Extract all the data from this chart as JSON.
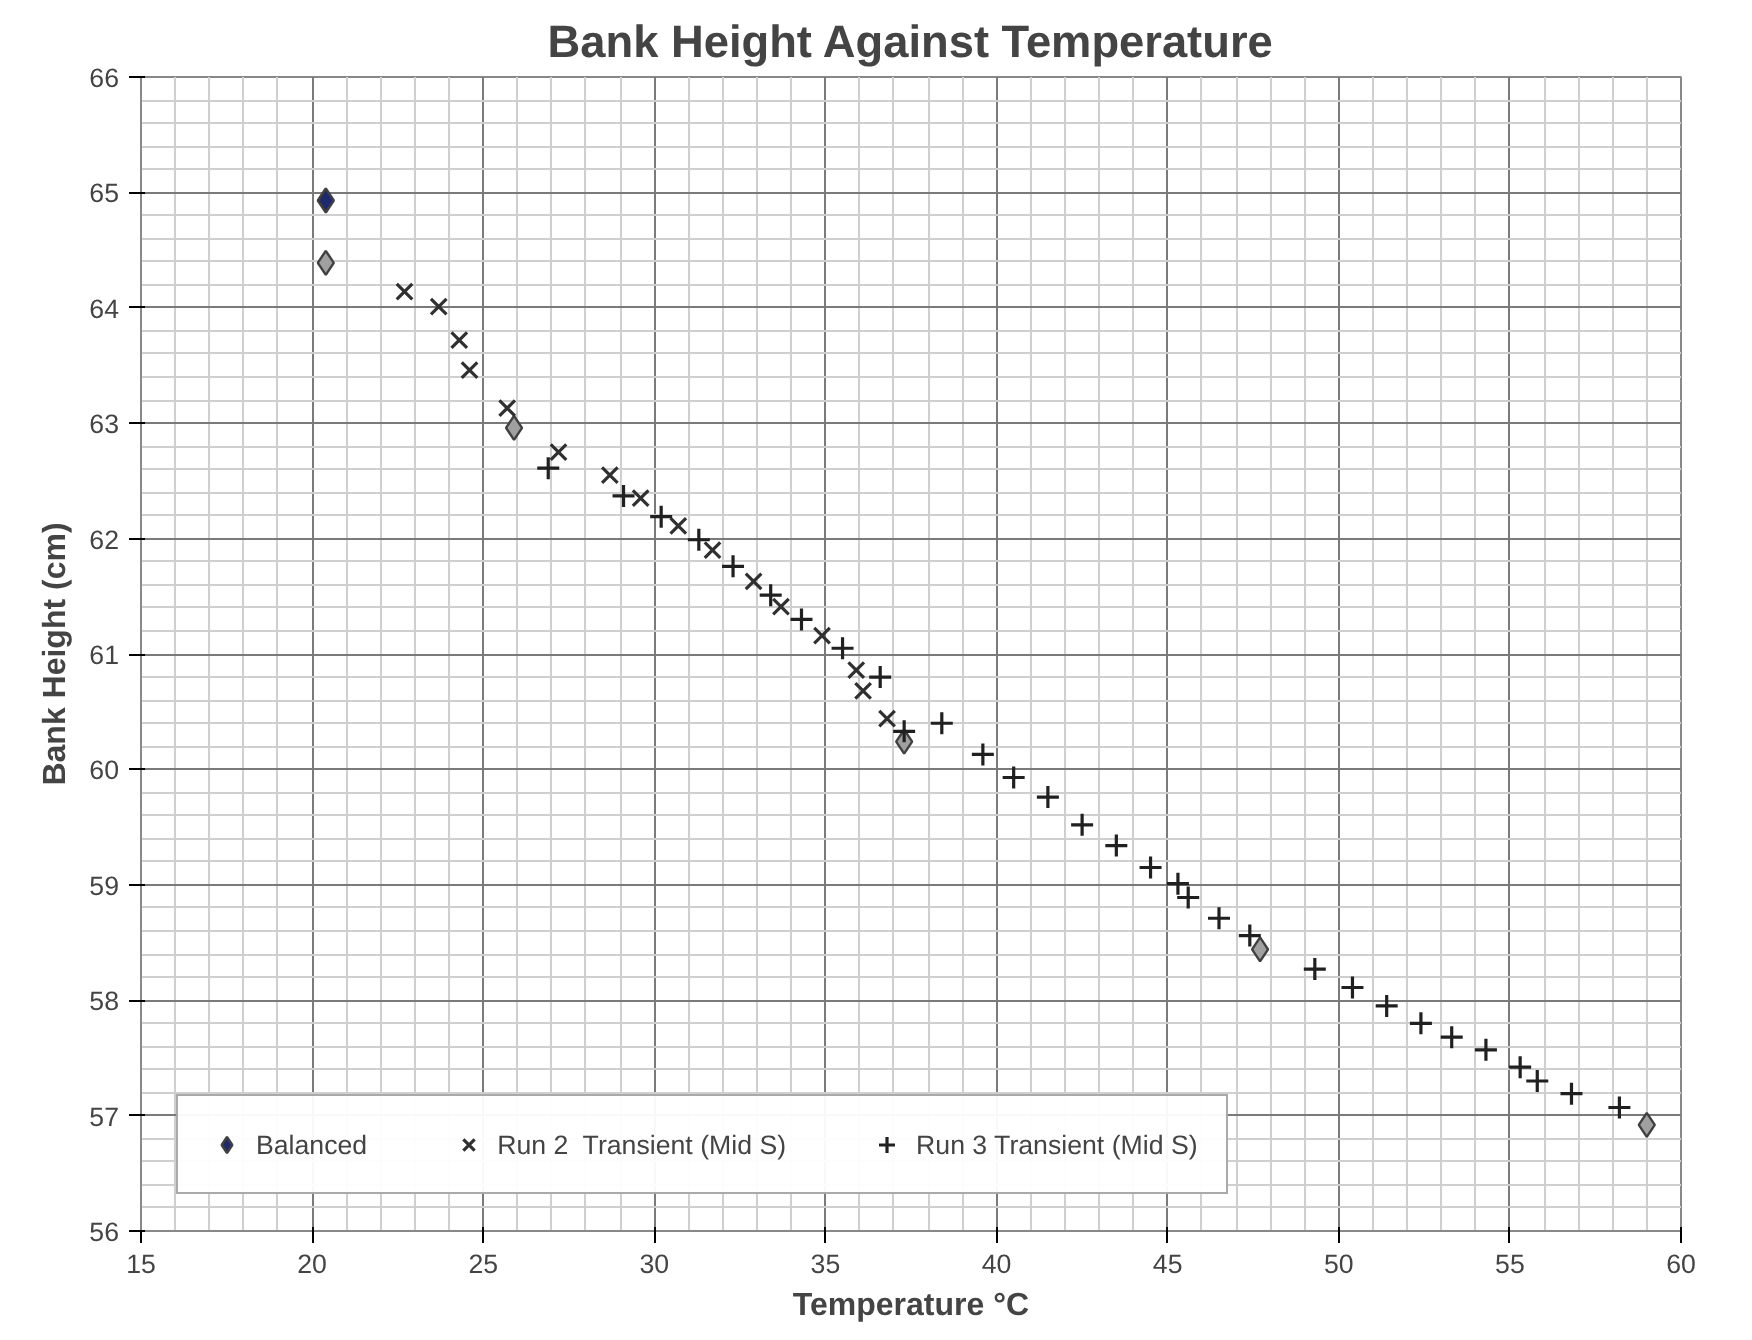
{
  "chart_data": {
    "type": "scatter",
    "title": "Bank Height Against Temperature",
    "xlabel": "Temperature °C",
    "ylabel": "Bank Height (cm)",
    "xlim": [
      15,
      60
    ],
    "xticks": [
      15,
      20,
      25,
      30,
      35,
      40,
      45,
      50,
      55,
      60
    ],
    "ylim": [
      56,
      66
    ],
    "yticks": [
      56,
      57,
      58,
      59,
      60,
      61,
      62,
      63,
      64,
      65,
      66
    ],
    "grid": true,
    "legend": "bottom left",
    "series": [
      {
        "name": "Balanced",
        "marker": "diamond",
        "color": "#a0a0a0",
        "colors": [
          "#1f2a6e",
          "#a0a0a0",
          "#a0a0a0",
          "#a0a0a0",
          "#a0a0a0",
          "#a0a0a0"
        ],
        "x": [
          20.4,
          20.4,
          25.9,
          37.3,
          47.7,
          59.0
        ],
        "values": [
          64.93,
          64.39,
          62.96,
          60.24,
          58.44,
          56.92
        ]
      },
      {
        "name": "Run 2  Transient (Mid S)",
        "marker": "x",
        "color": "#303030",
        "x": [
          22.7,
          23.7,
          24.3,
          24.6,
          25.7,
          27.2,
          28.7,
          29.6,
          30.7,
          31.7,
          32.9,
          33.7,
          34.9,
          35.9,
          36.1,
          36.8
        ],
        "values": [
          64.14,
          64.01,
          63.72,
          63.46,
          63.13,
          62.75,
          62.55,
          62.35,
          62.11,
          61.9,
          61.63,
          61.41,
          61.16,
          60.86,
          60.68,
          60.44
        ]
      },
      {
        "name": "Run 3 Transient (Mid S)",
        "marker": "cross",
        "color": "#202020",
        "x": [
          26.9,
          29.1,
          30.2,
          31.3,
          32.3,
          33.4,
          34.3,
          35.5,
          36.6,
          37.3,
          38.4,
          39.6,
          40.5,
          41.5,
          42.5,
          43.5,
          44.5,
          45.3,
          45.6,
          46.5,
          47.4,
          49.3,
          50.4,
          51.4,
          52.4,
          53.3,
          54.3,
          55.3,
          55.8,
          56.8,
          58.2
        ],
        "values": [
          62.61,
          62.37,
          62.19,
          61.99,
          61.76,
          61.51,
          61.3,
          61.05,
          60.8,
          60.33,
          60.4,
          60.13,
          59.93,
          59.76,
          59.52,
          59.34,
          59.15,
          59.01,
          58.89,
          58.71,
          58.56,
          58.27,
          58.11,
          57.95,
          57.8,
          57.68,
          57.57,
          57.42,
          57.3,
          57.19,
          57.07
        ]
      }
    ]
  }
}
